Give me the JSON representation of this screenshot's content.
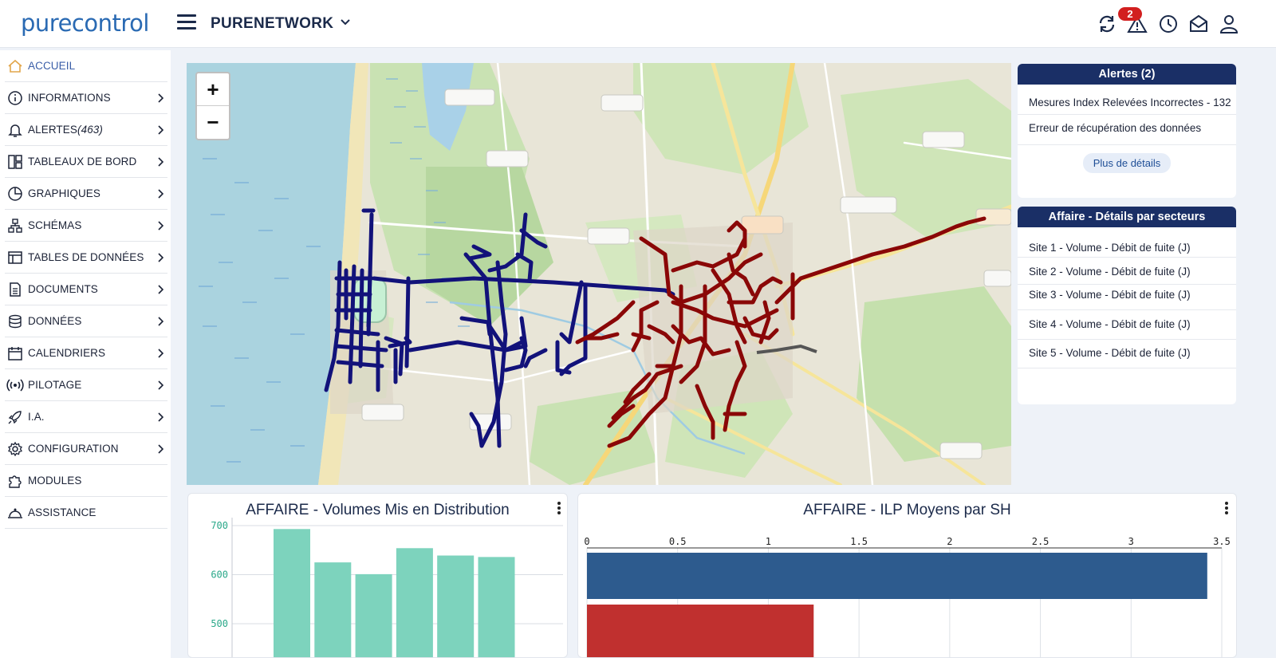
{
  "header": {
    "logo": "purecontrol",
    "network_title": "PURENETWORK",
    "alert_count": "2"
  },
  "sidebar": {
    "items": [
      {
        "label": "ACCUEIL",
        "icon": "home-icon",
        "active": true
      },
      {
        "label": "INFORMATIONS",
        "icon": "info-icon"
      },
      {
        "label": "ALERTES",
        "count": "(463)",
        "icon": "bell-icon"
      },
      {
        "label": "TABLEAUX DE BORD",
        "icon": "dashboard-icon"
      },
      {
        "label": "GRAPHIQUES",
        "icon": "pie-chart-icon"
      },
      {
        "label": "SCHÉMAS",
        "icon": "schema-icon"
      },
      {
        "label": "TABLES DE DONNÉES",
        "icon": "table-icon"
      },
      {
        "label": "DOCUMENTS",
        "icon": "document-icon"
      },
      {
        "label": "DONNÉES",
        "icon": "database-icon"
      },
      {
        "label": "CALENDRIERS",
        "icon": "calendar-icon"
      },
      {
        "label": "PILOTAGE",
        "icon": "broadcast-icon"
      },
      {
        "label": "I.A.",
        "icon": "rocket-icon"
      },
      {
        "label": "CONFIGURATION",
        "icon": "gear-icon"
      },
      {
        "label": "MODULES",
        "icon": "puzzle-icon"
      },
      {
        "label": "ASSISTANCE",
        "icon": "helpdesk-icon"
      }
    ]
  },
  "map": {
    "zoom_in": "+",
    "zoom_out": "−"
  },
  "alerts_panel": {
    "title": "Alertes (2)",
    "items": [
      "Mesures Index Relevées Incorrectes - 132",
      "Erreur de récupération des données"
    ],
    "more_label": "Plus de détails"
  },
  "sectors_panel": {
    "title": "Affaire - Détails par secteurs",
    "items": [
      "Site 1 - Volume - Débit de fuite  (J)",
      "Site 2 - Volume - Débit de fuite  (J)",
      "Site 3 - Volume - Débit de fuite  (J)",
      "Site 4 - Volume - Débit de fuite  (J)",
      "Site 5 - Volume - Débit de fuite  (J)"
    ]
  },
  "chart_data": [
    {
      "type": "bar",
      "title": "AFFAIRE - Volumes Mis en Distribution",
      "values": [
        693,
        625,
        601,
        654,
        639,
        636
      ],
      "yticks": [
        500,
        600,
        700
      ],
      "ylim": [
        430,
        710
      ],
      "color": "#7dd3bd",
      "grid": true
    },
    {
      "type": "bar",
      "orientation": "horizontal",
      "title": "AFFAIRE - ILP Moyens par SH",
      "values": [
        3.42,
        1.25
      ],
      "colors": [
        "#2d5b8e",
        "#c0302f"
      ],
      "xticks": [
        "0",
        "0.5",
        "1",
        "1.5",
        "2",
        "2.5",
        "3",
        "3.5"
      ],
      "xlim": [
        0,
        3.5
      ],
      "grid": true
    }
  ]
}
